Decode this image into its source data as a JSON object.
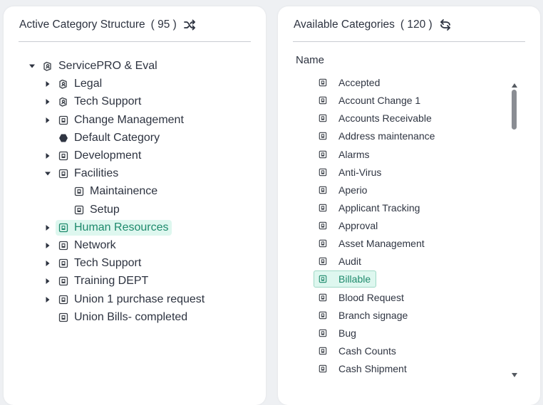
{
  "left": {
    "title": "Active Category Structure",
    "count": "( 95 )",
    "tree": [
      {
        "label": "ServicePRO & Eval",
        "icon": "org-icon",
        "caret": "down"
      },
      {
        "label": "Legal",
        "icon": "org-icon",
        "caret": "right"
      },
      {
        "label": "Tech Support",
        "icon": "org-icon",
        "caret": "right"
      },
      {
        "label": "Change Management",
        "icon": "category-icon",
        "caret": "right"
      },
      {
        "label": "Default Category",
        "icon": "hexagon-icon",
        "caret": "none"
      },
      {
        "label": "Development",
        "icon": "category-icon",
        "caret": "right"
      },
      {
        "label": "Facilities",
        "icon": "category-icon",
        "caret": "down"
      },
      {
        "label": "Maintainence",
        "icon": "category-icon",
        "caret": "none"
      },
      {
        "label": "Setup",
        "icon": "category-icon",
        "caret": "none"
      },
      {
        "label": "Human Resources",
        "icon": "category-icon",
        "caret": "right",
        "selected": true
      },
      {
        "label": "Network",
        "icon": "category-icon",
        "caret": "right"
      },
      {
        "label": "Tech Support",
        "icon": "category-icon",
        "caret": "right"
      },
      {
        "label": "Training DEPT",
        "icon": "category-icon",
        "caret": "right"
      },
      {
        "label": "Union 1 purchase request",
        "icon": "category-icon",
        "caret": "right"
      },
      {
        "label": "Union Bills- completed",
        "icon": "category-icon",
        "caret": "none"
      }
    ]
  },
  "right": {
    "title": "Available Categories",
    "count": "( 120 )",
    "column_header": "Name",
    "items": [
      {
        "label": "Accepted"
      },
      {
        "label": "Account Change 1"
      },
      {
        "label": "Accounts Receivable"
      },
      {
        "label": "Address maintenance"
      },
      {
        "label": "Alarms"
      },
      {
        "label": "Anti-Virus"
      },
      {
        "label": "Aperio"
      },
      {
        "label": "Applicant Tracking"
      },
      {
        "label": "Approval"
      },
      {
        "label": "Asset Management"
      },
      {
        "label": "Audit"
      },
      {
        "label": "Billable",
        "selected": true
      },
      {
        "label": "Blood Request"
      },
      {
        "label": "Branch signage"
      },
      {
        "label": "Bug"
      },
      {
        "label": "Cash Counts"
      },
      {
        "label": "Cash Shipment"
      }
    ]
  },
  "colors": {
    "selected_bg": "#def7ef",
    "selected_text": "#1e8a6c",
    "selected_border": "#9fd9c6"
  }
}
